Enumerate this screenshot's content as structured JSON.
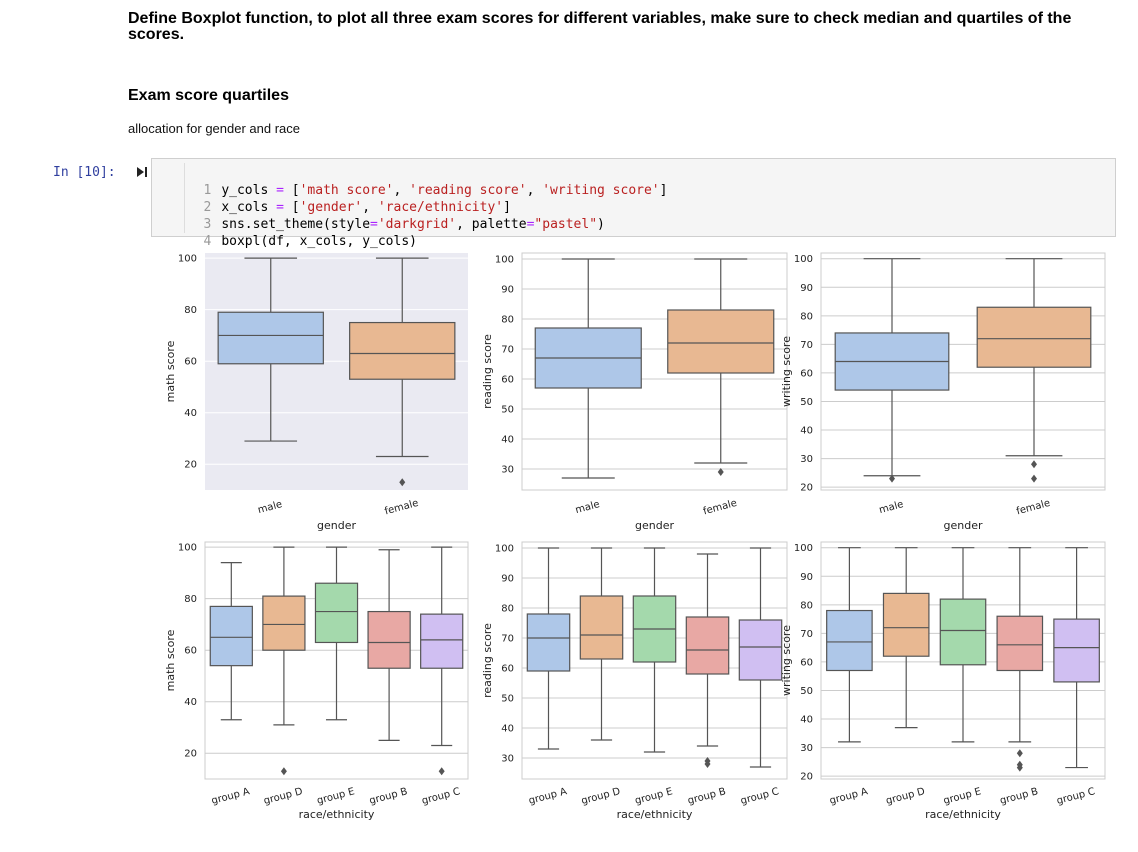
{
  "markdown": {
    "heading": "Define Boxplot function, to plot all three exam scores for different variables, make sure to check median and quartiles of the scores.",
    "subheading": "Exam score quartiles",
    "paragraph": "allocation for gender and race"
  },
  "cell": {
    "prompt": "In [10]:",
    "run_icon": "run-cell-icon",
    "lines": [
      {
        "n": "1",
        "text": "y_cols = ['math score', 'reading score', 'writing score']"
      },
      {
        "n": "2",
        "text": "x_cols = ['gender', 'race/ethnicity']"
      },
      {
        "n": "3",
        "text": "sns.set_theme(style='darkgrid', palette=\"pastel\")"
      },
      {
        "n": "4",
        "text": "boxpl(df, x_cols, y_cols)"
      }
    ]
  },
  "colors": {
    "blue": "#aec7e8",
    "orange": "#e8b892",
    "green": "#a4d9ac",
    "red": "#e8a8a4",
    "purple": "#d0bff2",
    "line": "#555555",
    "bg_dark": "#eaeaf2",
    "grid": "#cccccc"
  },
  "chart_data": [
    {
      "type": "box",
      "title": "",
      "xlabel": "gender",
      "ylabel": "math score",
      "ylim": [
        10,
        102
      ],
      "yticks": [
        20,
        40,
        60,
        80,
        100
      ],
      "grid": "darkgrid",
      "categories": [
        "male",
        "female"
      ],
      "boxes": [
        {
          "q1": 59,
          "median": 70,
          "q3": 79,
          "whislo": 29,
          "whishi": 100,
          "fliers": [],
          "color": "blue"
        },
        {
          "q1": 53,
          "median": 63,
          "q3": 75,
          "whislo": 23,
          "whishi": 100,
          "fliers": [
            13
          ],
          "color": "orange"
        }
      ]
    },
    {
      "type": "box",
      "title": "",
      "xlabel": "gender",
      "ylabel": "reading score",
      "ylim": [
        23,
        102
      ],
      "yticks": [
        30,
        40,
        50,
        60,
        70,
        80,
        90,
        100
      ],
      "grid": "whitegrid",
      "categories": [
        "male",
        "female"
      ],
      "boxes": [
        {
          "q1": 57,
          "median": 67,
          "q3": 77,
          "whislo": 27,
          "whishi": 100,
          "fliers": [],
          "color": "blue"
        },
        {
          "q1": 62,
          "median": 72,
          "q3": 83,
          "whislo": 32,
          "whishi": 100,
          "fliers": [
            29
          ],
          "color": "orange"
        }
      ]
    },
    {
      "type": "box",
      "title": "",
      "xlabel": "gender",
      "ylabel": "writing score",
      "ylim": [
        19,
        102
      ],
      "yticks": [
        20,
        30,
        40,
        50,
        60,
        70,
        80,
        90,
        100
      ],
      "grid": "whitegrid",
      "categories": [
        "male",
        "female"
      ],
      "boxes": [
        {
          "q1": 54,
          "median": 64,
          "q3": 74,
          "whislo": 24,
          "whishi": 100,
          "fliers": [
            23
          ],
          "color": "blue"
        },
        {
          "q1": 62,
          "median": 72,
          "q3": 83,
          "whislo": 31,
          "whishi": 100,
          "fliers": [
            28,
            23
          ],
          "color": "orange"
        }
      ]
    },
    {
      "type": "box",
      "title": "",
      "xlabel": "race/ethnicity",
      "ylabel": "math score",
      "ylim": [
        10,
        102
      ],
      "yticks": [
        20,
        40,
        60,
        80,
        100
      ],
      "grid": "whitegrid",
      "categories": [
        "group A",
        "group D",
        "group E",
        "group B",
        "group C"
      ],
      "boxes": [
        {
          "q1": 54,
          "median": 65,
          "q3": 77,
          "whislo": 33,
          "whishi": 94,
          "fliers": [],
          "color": "blue"
        },
        {
          "q1": 60,
          "median": 70,
          "q3": 81,
          "whislo": 31,
          "whishi": 100,
          "fliers": [
            13
          ],
          "color": "orange"
        },
        {
          "q1": 63,
          "median": 75,
          "q3": 86,
          "whislo": 33,
          "whishi": 100,
          "fliers": [],
          "color": "green"
        },
        {
          "q1": 53,
          "median": 63,
          "q3": 75,
          "whislo": 25,
          "whishi": 99,
          "fliers": [],
          "color": "red"
        },
        {
          "q1": 53,
          "median": 64,
          "q3": 74,
          "whislo": 23,
          "whishi": 100,
          "fliers": [
            13
          ],
          "color": "purple"
        }
      ]
    },
    {
      "type": "box",
      "title": "",
      "xlabel": "race/ethnicity",
      "ylabel": "reading score",
      "ylim": [
        23,
        102
      ],
      "yticks": [
        30,
        40,
        50,
        60,
        70,
        80,
        90,
        100
      ],
      "grid": "whitegrid",
      "categories": [
        "group A",
        "group D",
        "group E",
        "group B",
        "group C"
      ],
      "boxes": [
        {
          "q1": 59,
          "median": 70,
          "q3": 78,
          "whislo": 33,
          "whishi": 100,
          "fliers": [],
          "color": "blue"
        },
        {
          "q1": 63,
          "median": 71,
          "q3": 84,
          "whislo": 36,
          "whishi": 100,
          "fliers": [],
          "color": "orange"
        },
        {
          "q1": 62,
          "median": 73,
          "q3": 84,
          "whislo": 32,
          "whishi": 100,
          "fliers": [],
          "color": "green"
        },
        {
          "q1": 58,
          "median": 66,
          "q3": 77,
          "whislo": 34,
          "whishi": 98,
          "fliers": [
            29,
            28
          ],
          "color": "red"
        },
        {
          "q1": 56,
          "median": 67,
          "q3": 76,
          "whislo": 27,
          "whishi": 100,
          "fliers": [],
          "color": "purple"
        }
      ]
    },
    {
      "type": "box",
      "title": "",
      "xlabel": "race/ethnicity",
      "ylabel": "writing score",
      "ylim": [
        19,
        102
      ],
      "yticks": [
        20,
        30,
        40,
        50,
        60,
        70,
        80,
        90,
        100
      ],
      "grid": "whitegrid",
      "categories": [
        "group A",
        "group D",
        "group E",
        "group B",
        "group C"
      ],
      "boxes": [
        {
          "q1": 57,
          "median": 67,
          "q3": 78,
          "whislo": 32,
          "whishi": 100,
          "fliers": [],
          "color": "blue"
        },
        {
          "q1": 62,
          "median": 72,
          "q3": 84,
          "whislo": 37,
          "whishi": 100,
          "fliers": [],
          "color": "orange"
        },
        {
          "q1": 59,
          "median": 71,
          "q3": 82,
          "whislo": 32,
          "whishi": 100,
          "fliers": [],
          "color": "green"
        },
        {
          "q1": 57,
          "median": 66,
          "q3": 76,
          "whislo": 32,
          "whishi": 100,
          "fliers": [
            28,
            24,
            23
          ],
          "color": "red"
        },
        {
          "q1": 53,
          "median": 65,
          "q3": 75,
          "whislo": 23,
          "whishi": 100,
          "fliers": [],
          "color": "purple"
        }
      ]
    }
  ]
}
